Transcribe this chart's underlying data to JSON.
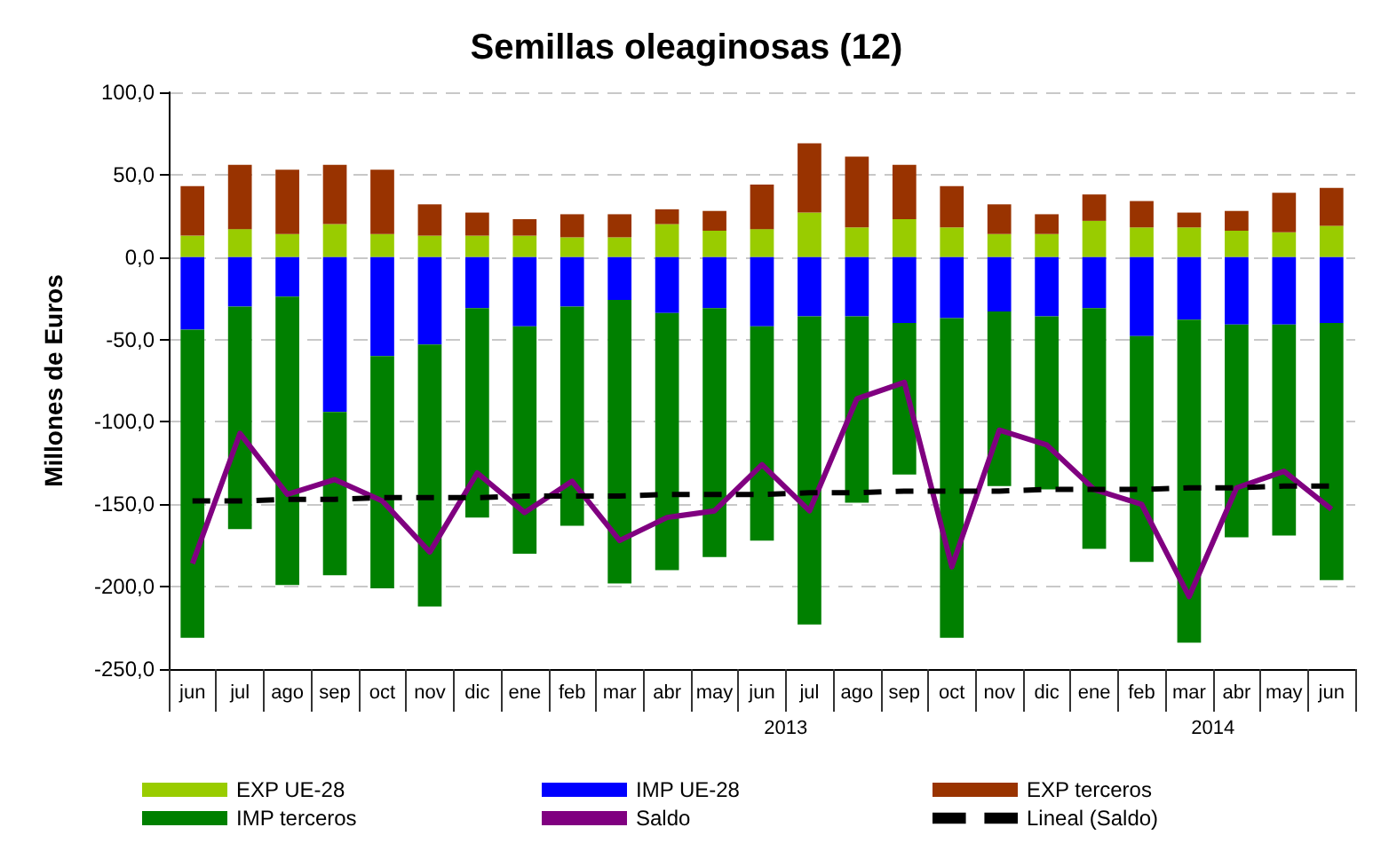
{
  "chart_data": {
    "type": "bar",
    "title": "Semillas oleaginosas (12)",
    "ylabel": "Millones de Euros",
    "categories": [
      "jun",
      "jul",
      "ago",
      "sep",
      "oct",
      "nov",
      "dic",
      "ene",
      "feb",
      "mar",
      "abr",
      "may",
      "jun",
      "jul",
      "ago",
      "sep",
      "oct",
      "nov",
      "dic",
      "ene",
      "feb",
      "mar",
      "abr",
      "may",
      "jun"
    ],
    "annotations": [
      "2013",
      "2014"
    ],
    "stacked": true,
    "grid": "y",
    "legend": "bottom",
    "ylim": [
      -250,
      100
    ],
    "yticks": [
      {
        "value": -250,
        "label": "-250,0"
      },
      {
        "value": -200,
        "label": "-200,0"
      },
      {
        "value": -150,
        "label": "-150,0"
      },
      {
        "value": -100,
        "label": "-100,0"
      },
      {
        "value": -50,
        "label": "-50,0"
      },
      {
        "value": 0,
        "label": "0,0"
      },
      {
        "value": 50,
        "label": "50,0"
      },
      {
        "value": 100,
        "label": "100,0"
      }
    ],
    "series": [
      {
        "name": "EXP UE-28",
        "color": "#99cc00",
        "values": [
          13,
          17,
          14,
          20,
          14,
          13,
          13,
          13,
          12,
          12,
          20,
          16,
          17,
          27,
          18,
          23,
          18,
          14,
          14,
          22,
          18,
          18,
          16,
          15,
          19
        ]
      },
      {
        "name": "IMP UE-28",
        "color": "#0000ff",
        "values": [
          -44,
          -30,
          -24,
          -94,
          -60,
          -53,
          -31,
          -42,
          -30,
          -26,
          -34,
          -31,
          -42,
          -36,
          -36,
          -40,
          -37,
          -33,
          -36,
          -31,
          -48,
          -38,
          -41,
          -41,
          -40
        ]
      },
      {
        "name": "EXP terceros",
        "color": "#993300",
        "values": [
          30,
          39,
          39,
          36,
          39,
          19,
          14,
          10,
          14,
          14,
          9,
          12,
          27,
          42,
          43,
          33,
          25,
          18,
          12,
          16,
          16,
          9,
          12,
          24,
          23
        ]
      },
      {
        "name": "IMP terceros",
        "color": "#008000",
        "values": [
          -187,
          -135,
          -175,
          -99,
          -141,
          -159,
          -127,
          -138,
          -133,
          -172,
          -156,
          -151,
          -130,
          -187,
          -113,
          -92,
          -194,
          -106,
          -105,
          -146,
          -137,
          -196,
          -129,
          -128,
          -156
        ]
      },
      {
        "name": "Saldo",
        "type": "line",
        "color": "#800080",
        "values": [
          -186,
          -107,
          -144,
          -135,
          -148,
          -179,
          -131,
          -155,
          -136,
          -172,
          -158,
          -154,
          -126,
          -154,
          -86,
          -76,
          -188,
          -105,
          -114,
          -141,
          -150,
          -206,
          -140,
          -130,
          -153
        ]
      },
      {
        "name": "Lineal (Saldo)",
        "type": "line",
        "line_style": "dashed",
        "color": "#000000",
        "values": [
          -148,
          -148,
          -147,
          -147,
          -146,
          -146,
          -146,
          -145,
          -145,
          -145,
          -144,
          -144,
          -144,
          -143,
          -143,
          -142,
          -142,
          -142,
          -141,
          -141,
          -141,
          -140,
          -140,
          -139,
          -139
        ]
      }
    ]
  }
}
